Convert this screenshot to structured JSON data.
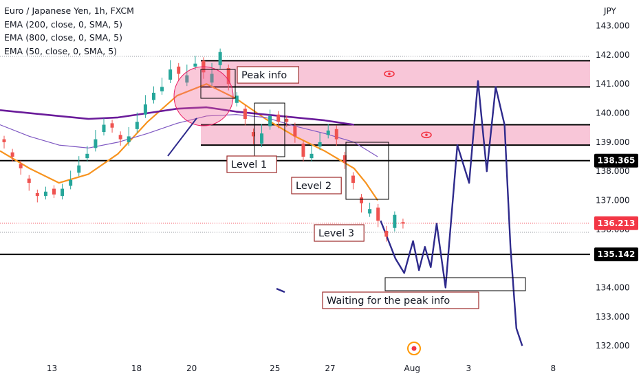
{
  "legend": {
    "symbol": "Euro / Japanese Yen, 1h, FXCM",
    "ema200": "EMA (200, close, 0, SMA, 5)",
    "ema800": "EMA (800, close, 0, SMA, 5)",
    "ema50": "EMA (50, close, 0, SMA, 5)"
  },
  "chart_data": {
    "type": "candlestick",
    "title": "Euro / Japanese Yen, 1h, FXCM",
    "currency_label": "JPY",
    "y_ticks": [
      "143.000",
      "142.000",
      "141.000",
      "140.000",
      "139.000",
      "138.000",
      "137.000",
      "136.000",
      "134.000",
      "133.000",
      "132.000"
    ],
    "y_tick_values": [
      143,
      142,
      141,
      140,
      139,
      138,
      137,
      136,
      134,
      133,
      132
    ],
    "ylim": [
      131.6,
      143.7
    ],
    "x_ticks": [
      "13",
      "18",
      "20",
      "25",
      "27",
      "Aug",
      "3",
      "8"
    ],
    "x_tick_positions": [
      0.081,
      0.213,
      0.299,
      0.429,
      0.515,
      0.643,
      0.731,
      0.863
    ],
    "price_levels": [
      {
        "label": "138.365",
        "value": 138.365,
        "style": "black",
        "line": "solid"
      },
      {
        "label": "135.142",
        "value": 135.142,
        "style": "black",
        "line": "solid"
      },
      {
        "label": "136.213",
        "value": 136.213,
        "style": "red",
        "line": "dotted"
      }
    ],
    "zones": [
      {
        "from": 140.9,
        "to": 141.8,
        "color": "#f8c6d8"
      },
      {
        "from": 138.9,
        "to": 139.6,
        "color": "#f8c6d8"
      }
    ],
    "annotations": [
      "Peak info",
      "Level 1",
      "Level 2",
      "Level 3",
      "Waiting for the peak info"
    ],
    "colors": {
      "up": "#26a69a",
      "down": "#ef5350",
      "ema50": "#f7931e",
      "ema200": "#6a1b9a",
      "ema800": "#7e57c2",
      "projection": "#2e2a8c",
      "zone": "#f8c6d8",
      "price": "#f23645"
    },
    "candles": [
      [
        139.1,
        139.0,
        138.9,
        138.6
      ],
      [
        138.65,
        138.5,
        138.45,
        138.2
      ],
      [
        138.25,
        138.1,
        138.0,
        137.7
      ],
      [
        137.75,
        137.6,
        137.45,
        137.2
      ],
      [
        137.25,
        137.15,
        137.05,
        137.1
      ],
      [
        137.15,
        137.3,
        137.25,
        137.35
      ],
      [
        137.4,
        137.2,
        137.3,
        137.1
      ],
      [
        137.15,
        137.4,
        137.35,
        137.45
      ],
      [
        137.5,
        137.7,
        137.6,
        137.9
      ],
      [
        137.95,
        138.2,
        138.1,
        138.4
      ],
      [
        138.45,
        138.6,
        138.5,
        138.75
      ],
      [
        138.8,
        139.1,
        139.0,
        139.3
      ],
      [
        139.35,
        139.6,
        139.5,
        139.7
      ],
      [
        139.65,
        139.5,
        139.45,
        139.3
      ],
      [
        139.25,
        139.1,
        139.0,
        138.95
      ],
      [
        139.0,
        139.2,
        139.15,
        139.4
      ],
      [
        139.45,
        139.7,
        139.6,
        139.9
      ],
      [
        139.95,
        140.3,
        140.2,
        140.5
      ],
      [
        140.45,
        140.7,
        140.6,
        140.8
      ],
      [
        140.75,
        140.9,
        140.85,
        141.1
      ],
      [
        141.15,
        141.5,
        141.4,
        141.7
      ],
      [
        141.6,
        141.35,
        141.25,
        141.0
      ],
      [
        141.05,
        141.3,
        141.25,
        141.55
      ],
      [
        141.6,
        141.7,
        141.6,
        141.85
      ],
      [
        141.8,
        141.4,
        141.3,
        141.0
      ],
      [
        141.05,
        141.35,
        141.3,
        141.6
      ],
      [
        141.65,
        142.1,
        142.0,
        141.6
      ],
      [
        141.55,
        141.0,
        140.9,
        140.4
      ],
      [
        140.35,
        140.6,
        140.5,
        140.2
      ],
      [
        140.15,
        139.8,
        139.7,
        139.4
      ],
      [
        139.35,
        139.2,
        139.05,
        138.9
      ],
      [
        138.95,
        139.3,
        139.25,
        139.5
      ],
      [
        139.55,
        139.9,
        139.8,
        140.0
      ],
      [
        139.95,
        139.7,
        139.6,
        139.75
      ],
      [
        139.8,
        139.7,
        139.65,
        139.6
      ],
      [
        139.55,
        139.2,
        139.1,
        139.0
      ],
      [
        138.95,
        138.5,
        138.45,
        138.4
      ],
      [
        138.45,
        138.6,
        138.55,
        138.8
      ],
      [
        138.85,
        139.0,
        138.95,
        139.2
      ],
      [
        139.25,
        139.4,
        139.45,
        139.5
      ],
      [
        139.45,
        139.1,
        139.0,
        138.6
      ],
      [
        138.55,
        138.3,
        138.2,
        137.9
      ],
      [
        137.85,
        137.6,
        137.5,
        137.2
      ],
      [
        137.1,
        136.9,
        136.7,
        136.5
      ],
      [
        136.55,
        136.7,
        136.65,
        136.8
      ],
      [
        136.75,
        136.3,
        136.2,
        136.0
      ],
      [
        135.95,
        135.75,
        135.7,
        136.0
      ],
      [
        136.05,
        136.5,
        136.55,
        136.3
      ],
      [
        136.25,
        136.2,
        136.15,
        136.1
      ]
    ],
    "series": [
      {
        "name": "EMA (50, close, 0, SMA, 5)",
        "x": [
          0,
          0.05,
          0.1,
          0.15,
          0.2,
          0.25,
          0.3,
          0.35,
          0.4,
          0.45,
          0.5,
          0.55,
          0.6,
          0.62,
          0.64
        ],
        "y": [
          138.7,
          138.1,
          137.6,
          137.9,
          138.6,
          139.7,
          140.6,
          141.0,
          140.5,
          139.8,
          139.2,
          138.7,
          138.1,
          137.6,
          137.0
        ]
      },
      {
        "name": "EMA (200, close, 0, SMA, 5)",
        "x": [
          0,
          0.05,
          0.1,
          0.15,
          0.2,
          0.25,
          0.3,
          0.35,
          0.4,
          0.45,
          0.5,
          0.55,
          0.6
        ],
        "y": [
          140.1,
          140.0,
          139.9,
          139.8,
          139.85,
          140.0,
          140.15,
          140.2,
          140.05,
          139.95,
          139.85,
          139.75,
          139.6
        ]
      },
      {
        "name": "EMA (800, close, 0, SMA, 5)",
        "x": [
          0,
          0.05,
          0.1,
          0.15,
          0.2,
          0.25,
          0.3,
          0.35,
          0.4,
          0.45,
          0.5,
          0.55,
          0.6,
          0.64
        ],
        "y": [
          139.6,
          139.2,
          138.9,
          138.8,
          139.0,
          139.3,
          139.65,
          139.9,
          139.95,
          139.85,
          139.55,
          139.3,
          139.0,
          138.5
        ]
      },
      {
        "name": "Projection",
        "x": [
          0.645,
          0.67,
          0.685,
          0.7,
          0.71,
          0.72,
          0.73,
          0.74,
          0.755,
          0.775,
          0.795,
          0.81,
          0.825,
          0.84,
          0.855,
          0.865,
          0.875,
          0.885
        ],
        "y": [
          136.3,
          135.0,
          134.5,
          135.6,
          134.6,
          135.4,
          134.7,
          136.2,
          134.0,
          138.9,
          137.6,
          141.1,
          138.0,
          140.9,
          139.6,
          135.4,
          132.6,
          132.0
        ]
      }
    ]
  }
}
